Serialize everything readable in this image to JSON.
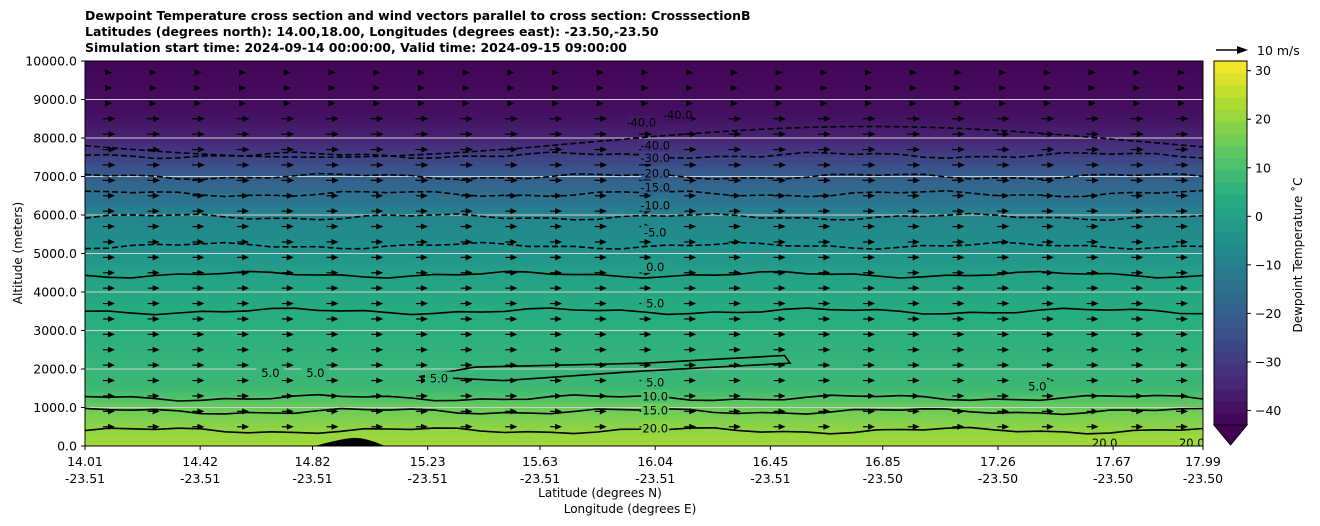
{
  "titles": [
    "Dewpoint Temperature cross section and wind vectors parallel to cross section: CrosssectionB",
    "Latitudes (degrees north): 14.00,18.00, Longitudes (degrees east): -23.50,-23.50",
    "Simulation start time: 2024-09-14 00:00:00, Valid time: 2024-09-15 09:00:00"
  ],
  "chart_data": {
    "type": "heatmap",
    "ylabel": "Altitude (meters)",
    "xlabel_lines": [
      "Latitude (degrees N)",
      "Longitude (degrees E)"
    ],
    "ylim": [
      0,
      10000
    ],
    "yticks": [
      "0.0",
      "1000.0",
      "2000.0",
      "3000.0",
      "4000.0",
      "5000.0",
      "6000.0",
      "7000.0",
      "8000.0",
      "9000.0",
      "10000.0"
    ],
    "ytick_values": [
      0,
      1000,
      2000,
      3000,
      4000,
      5000,
      6000,
      7000,
      8000,
      9000,
      10000
    ],
    "xticks": [
      {
        "lat": "14.01",
        "lon": "-23.51"
      },
      {
        "lat": "14.42",
        "lon": "-23.51"
      },
      {
        "lat": "14.82",
        "lon": "-23.51"
      },
      {
        "lat": "15.23",
        "lon": "-23.51"
      },
      {
        "lat": "15.63",
        "lon": "-23.51"
      },
      {
        "lat": "16.04",
        "lon": "-23.51"
      },
      {
        "lat": "16.45",
        "lon": "-23.51"
      },
      {
        "lat": "16.85",
        "lon": "-23.50"
      },
      {
        "lat": "17.26",
        "lon": "-23.50"
      },
      {
        "lat": "17.67",
        "lon": "-23.50"
      },
      {
        "lat": "17.99",
        "lon": "-23.50"
      }
    ],
    "grid": "horizontal",
    "colorbar": {
      "label": "Dewpoint Temperature ˚C",
      "ticks": [
        "−40",
        "−30",
        "−20",
        "−10",
        "0",
        "10",
        "20",
        "30"
      ],
      "tick_values": [
        -40,
        -30,
        -20,
        -10,
        0,
        10,
        20,
        30
      ],
      "range": [
        -43,
        32
      ],
      "colormap": "viridis",
      "extend": "min"
    },
    "color_field_profile": [
      {
        "alt": 0,
        "temp": 22
      },
      {
        "alt": 400,
        "temp": 20
      },
      {
        "alt": 1000,
        "temp": 15
      },
      {
        "alt": 1500,
        "temp": 8
      },
      {
        "alt": 2500,
        "temp": 6
      },
      {
        "alt": 3500,
        "temp": 4
      },
      {
        "alt": 4500,
        "temp": 0
      },
      {
        "alt": 5000,
        "temp": -4
      },
      {
        "alt": 6000,
        "temp": -9
      },
      {
        "alt": 6500,
        "temp": -15
      },
      {
        "alt": 7000,
        "temp": -20
      },
      {
        "alt": 7500,
        "temp": -28
      },
      {
        "alt": 8000,
        "temp": -35
      },
      {
        "alt": 8700,
        "temp": -40
      },
      {
        "alt": 10000,
        "temp": -42
      }
    ],
    "contour_levels": [
      20.0,
      15.0,
      10.0,
      5.0,
      0.0,
      -5.0,
      -10.0,
      -15.0,
      -20.0,
      -30.0,
      -40.0
    ],
    "contour_labels": [
      {
        "text": "20.0",
        "lat": 16.04,
        "alt": 450
      },
      {
        "text": "15.0",
        "lat": 16.04,
        "alt": 920
      },
      {
        "text": "10.0",
        "lat": 16.04,
        "alt": 1280
      },
      {
        "text": "5.0",
        "lat": 16.04,
        "alt": 1650
      },
      {
        "text": "5.0",
        "lat": 16.04,
        "alt": 3700
      },
      {
        "text": "0.0",
        "lat": 16.04,
        "alt": 4650
      },
      {
        "text": "-5.0",
        "lat": 16.04,
        "alt": 5550
      },
      {
        "text": "-10.0",
        "lat": 16.04,
        "alt": 6250
      },
      {
        "text": "-15.0",
        "lat": 16.04,
        "alt": 6720
      },
      {
        "text": "-20.0",
        "lat": 16.04,
        "alt": 7080
      },
      {
        "text": "-30.0",
        "lat": 16.04,
        "alt": 7480
      },
      {
        "text": "-40.0",
        "lat": 16.04,
        "alt": 7800
      },
      {
        "text": "-40.0",
        "lat": 15.99,
        "alt": 8400
      },
      {
        "text": "-40.0",
        "lat": 16.12,
        "alt": 8600
      },
      {
        "text": "5.0",
        "lat": 14.67,
        "alt": 1900
      },
      {
        "text": "5.0",
        "lat": 14.83,
        "alt": 1900
      },
      {
        "text": "5.0",
        "lat": 15.27,
        "alt": 1750
      },
      {
        "text": "5.0",
        "lat": 17.4,
        "alt": 1550
      },
      {
        "text": "20.0",
        "lat": 17.64,
        "alt": 80
      },
      {
        "text": "20.0",
        "lat": 17.95,
        "alt": 80
      }
    ],
    "wind_reference": {
      "label": "10 m/s"
    },
    "terrain_peak": {
      "lat": 14.97,
      "alt": 210
    }
  }
}
